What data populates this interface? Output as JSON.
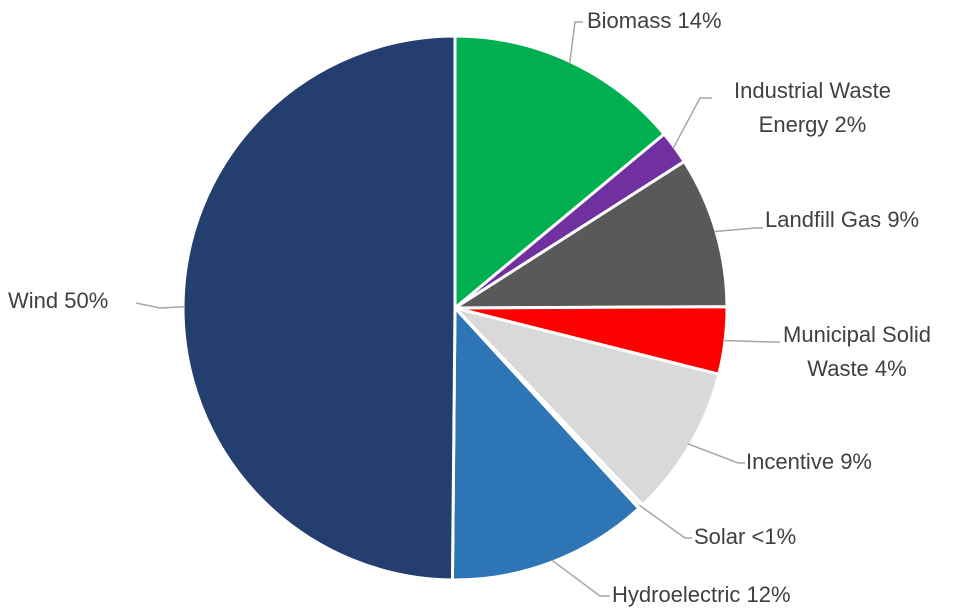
{
  "chart_data": {
    "type": "pie",
    "categories": [
      "Biomass",
      "Industrial Waste Energy",
      "Landfill Gas",
      "Municipal Solid Waste",
      "Incentive",
      "Solar",
      "Hydroelectric",
      "Wind"
    ],
    "values": [
      14,
      2,
      9,
      4,
      9,
      0.3,
      12,
      50
    ],
    "value_labels": [
      "14%",
      "2%",
      "9%",
      "4%",
      "9%",
      "<1%",
      "12%",
      "50%"
    ],
    "colors": [
      "#00b050",
      "#7030a0",
      "#595959",
      "#ff0000",
      "#d9d9d9",
      "#f2f2f2",
      "#2e75b6",
      "#243e6f"
    ]
  }
}
